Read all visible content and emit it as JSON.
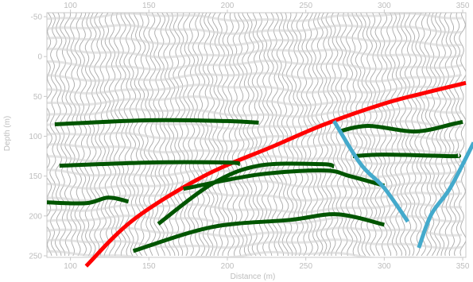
{
  "chart_data": {
    "type": "line",
    "title": "",
    "xlabel": "Distance (m)",
    "ylabel": "Depth (m)",
    "xlim": [
      85,
      352
    ],
    "ylim": [
      -55,
      252
    ],
    "y_inverted": true,
    "x_ticks": [
      100,
      150,
      200,
      250,
      300,
      350
    ],
    "y_ticks": [
      -50,
      0,
      50,
      100,
      150,
      200,
      250
    ],
    "grid": false,
    "background": "seismic wiggle traces (gray)",
    "series": [
      {
        "color": "#ff0000",
        "width": 5,
        "points": [
          [
            110,
            263
          ],
          [
            140,
            205
          ],
          [
            185,
            150
          ],
          [
            230,
            112
          ],
          [
            262,
            85
          ],
          [
            300,
            59
          ],
          [
            325,
            46
          ],
          [
            352,
            33
          ]
        ]
      },
      {
        "color": "#005500",
        "width": 5,
        "points": [
          [
            90,
            85
          ],
          [
            150,
            80
          ],
          [
            200,
            81
          ],
          [
            220,
            83
          ]
        ]
      },
      {
        "color": "#005500",
        "width": 5,
        "points": [
          [
            93,
            137
          ],
          [
            150,
            133
          ],
          [
            200,
            133
          ],
          [
            208,
            135
          ]
        ]
      },
      {
        "color": "#005500",
        "width": 5,
        "points": [
          [
            85,
            183
          ],
          [
            110,
            184
          ],
          [
            124,
            177
          ],
          [
            137,
            182
          ]
        ]
      },
      {
        "color": "#005500",
        "width": 5,
        "points": [
          [
            156,
            210
          ],
          [
            190,
            160
          ],
          [
            220,
            137
          ],
          [
            260,
            135
          ],
          [
            268,
            138
          ]
        ]
      },
      {
        "color": "#005500",
        "width": 5,
        "points": [
          [
            172,
            166
          ],
          [
            220,
            148
          ],
          [
            262,
            143
          ],
          [
            278,
            150
          ],
          [
            300,
            162
          ]
        ]
      },
      {
        "color": "#005500",
        "width": 5,
        "points": [
          [
            140,
            244
          ],
          [
            190,
            214
          ],
          [
            240,
            205
          ],
          [
            270,
            198
          ],
          [
            300,
            211
          ]
        ]
      },
      {
        "color": "#005500",
        "width": 5,
        "points": [
          [
            271,
            94
          ],
          [
            290,
            87
          ],
          [
            320,
            94
          ],
          [
            345,
            84
          ],
          [
            350,
            82
          ]
        ]
      },
      {
        "color": "#005500",
        "width": 5,
        "points": [
          [
            280,
            125
          ],
          [
            300,
            123
          ],
          [
            343,
            125
          ],
          [
            347,
            124
          ]
        ]
      },
      {
        "color": "#44aacc",
        "width": 5,
        "points": [
          [
            268,
            81
          ],
          [
            285,
            135
          ],
          [
            300,
            165
          ],
          [
            315,
            207
          ]
        ]
      },
      {
        "color": "#44aacc",
        "width": 5,
        "points": [
          [
            322,
            240
          ],
          [
            330,
            198
          ],
          [
            342,
            165
          ],
          [
            357,
            108
          ]
        ]
      }
    ]
  }
}
